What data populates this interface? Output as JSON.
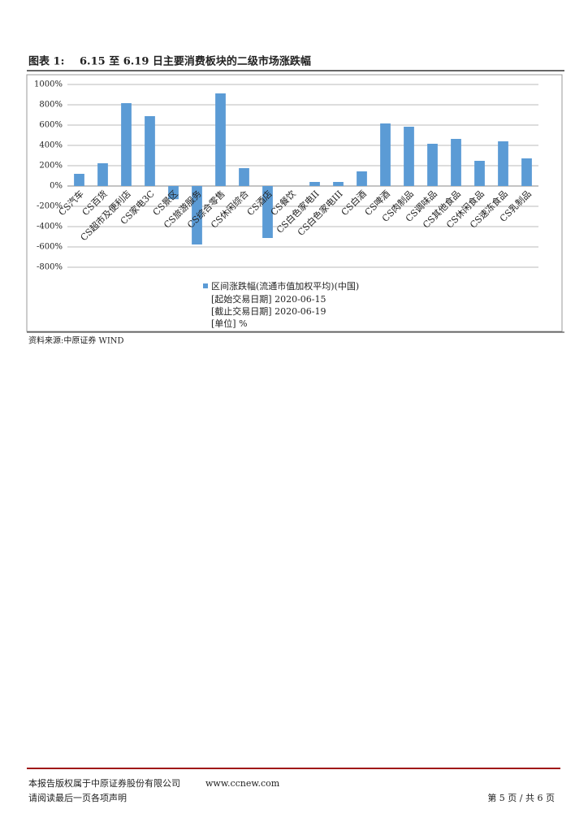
{
  "header": {
    "label": "图表 1:",
    "title": "6.15 至 6.19 日主要消费板块的二级市场涨跌幅"
  },
  "chart_data": {
    "type": "bar",
    "categories": [
      "CS汽车",
      "CS百货",
      "CS超市及便利店",
      "CS家电3C",
      "CS景区",
      "CS旅游服务",
      "CS综合零售",
      "CS休闲综合",
      "CS酒店",
      "CS餐饮",
      "CS白色家电II",
      "CS白色家电III",
      "CS白酒",
      "CS啤酒",
      "CS肉制品",
      "CS调味品",
      "CS其他食品",
      "CS休闲食品",
      "CS速冻食品",
      "CS乳制品"
    ],
    "series": [
      {
        "name": "区间涨跌幅(流通市值加权平均)(中国)",
        "color": "#5b9bd5",
        "values": [
          120,
          224,
          816,
          688,
          -130,
          -576,
          912,
          176,
          -512,
          0,
          40,
          40,
          144,
          616,
          584,
          416,
          464,
          248,
          440,
          272
        ]
      }
    ],
    "ylim": [
      -800,
      1000
    ],
    "yticks": [
      {
        "value": -800,
        "label": "-800%"
      },
      {
        "value": -600,
        "label": "-600%"
      },
      {
        "value": -400,
        "label": "-400%"
      },
      {
        "value": -200,
        "label": "-200%"
      },
      {
        "value": 0,
        "label": "0%"
      },
      {
        "value": 200,
        "label": "200%"
      },
      {
        "value": 400,
        "label": "400%"
      },
      {
        "value": 600,
        "label": "600%"
      },
      {
        "value": 800,
        "label": "800%"
      },
      {
        "value": 1000,
        "label": "1000%"
      }
    ],
    "grid": true,
    "annotations": [
      "[起始交易日期] 2020-06-15",
      "[截止交易日期] 2020-06-19",
      "[单位] %"
    ]
  },
  "source": "资料来源:中原证券 WIND",
  "footer": {
    "copyright": "本报告版权属于中原证券股份有限公司",
    "url": "www.ccnew.com",
    "notice": "请阅读最后一页各项声明",
    "page": "第 5 页 / 共 6 页"
  }
}
